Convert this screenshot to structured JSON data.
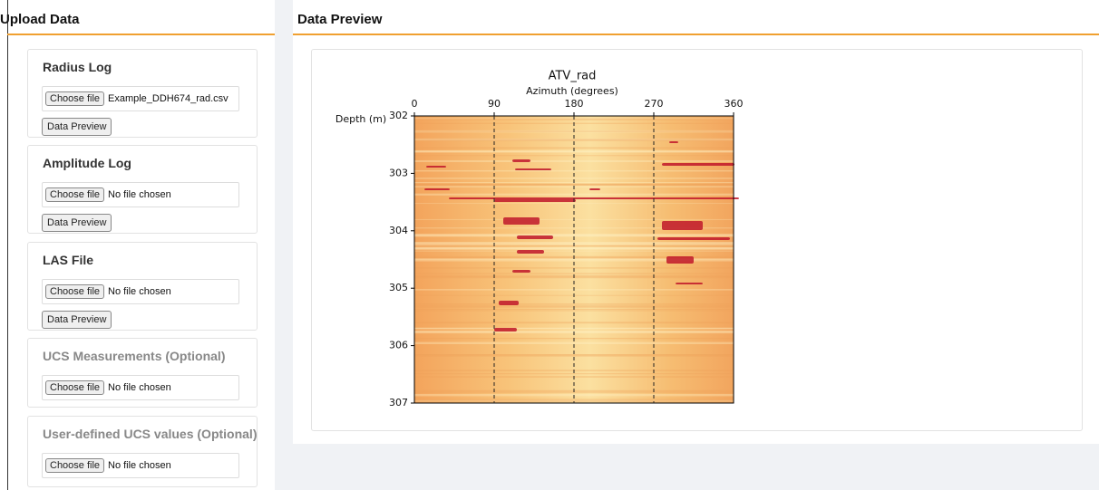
{
  "sidebar": {
    "title": "Upload Data",
    "sections": [
      {
        "title": "Radius Log",
        "file_button": "Choose file",
        "file_name": "Example_DDH674_rad.csv",
        "preview_button": "Data Preview"
      },
      {
        "title": "Amplitude Log",
        "file_button": "Choose file",
        "file_name": "No file chosen",
        "preview_button": "Data Preview"
      },
      {
        "title": "LAS File",
        "file_button": "Choose file",
        "file_name": "No file chosen",
        "preview_button": "Data Preview"
      },
      {
        "title": "UCS Measurements (Optional)",
        "file_button": "Choose file",
        "file_name": "No file chosen"
      },
      {
        "title": "User-defined UCS values (Optional)",
        "file_button": "Choose file",
        "file_name": "No file chosen"
      }
    ]
  },
  "main": {
    "title": "Data Preview"
  },
  "chart_data": {
    "type": "heatmap",
    "title": "ATV_rad",
    "x_label": "Azimuth (degrees)",
    "y_label": "Depth (m)",
    "xlim": [
      0,
      360
    ],
    "xticks": [
      0,
      90,
      180,
      270,
      360
    ],
    "ylim": [
      302,
      307
    ],
    "yticks": [
      302,
      303,
      304,
      305,
      306,
      307
    ],
    "reference_lines": [
      90,
      180,
      270
    ]
  }
}
